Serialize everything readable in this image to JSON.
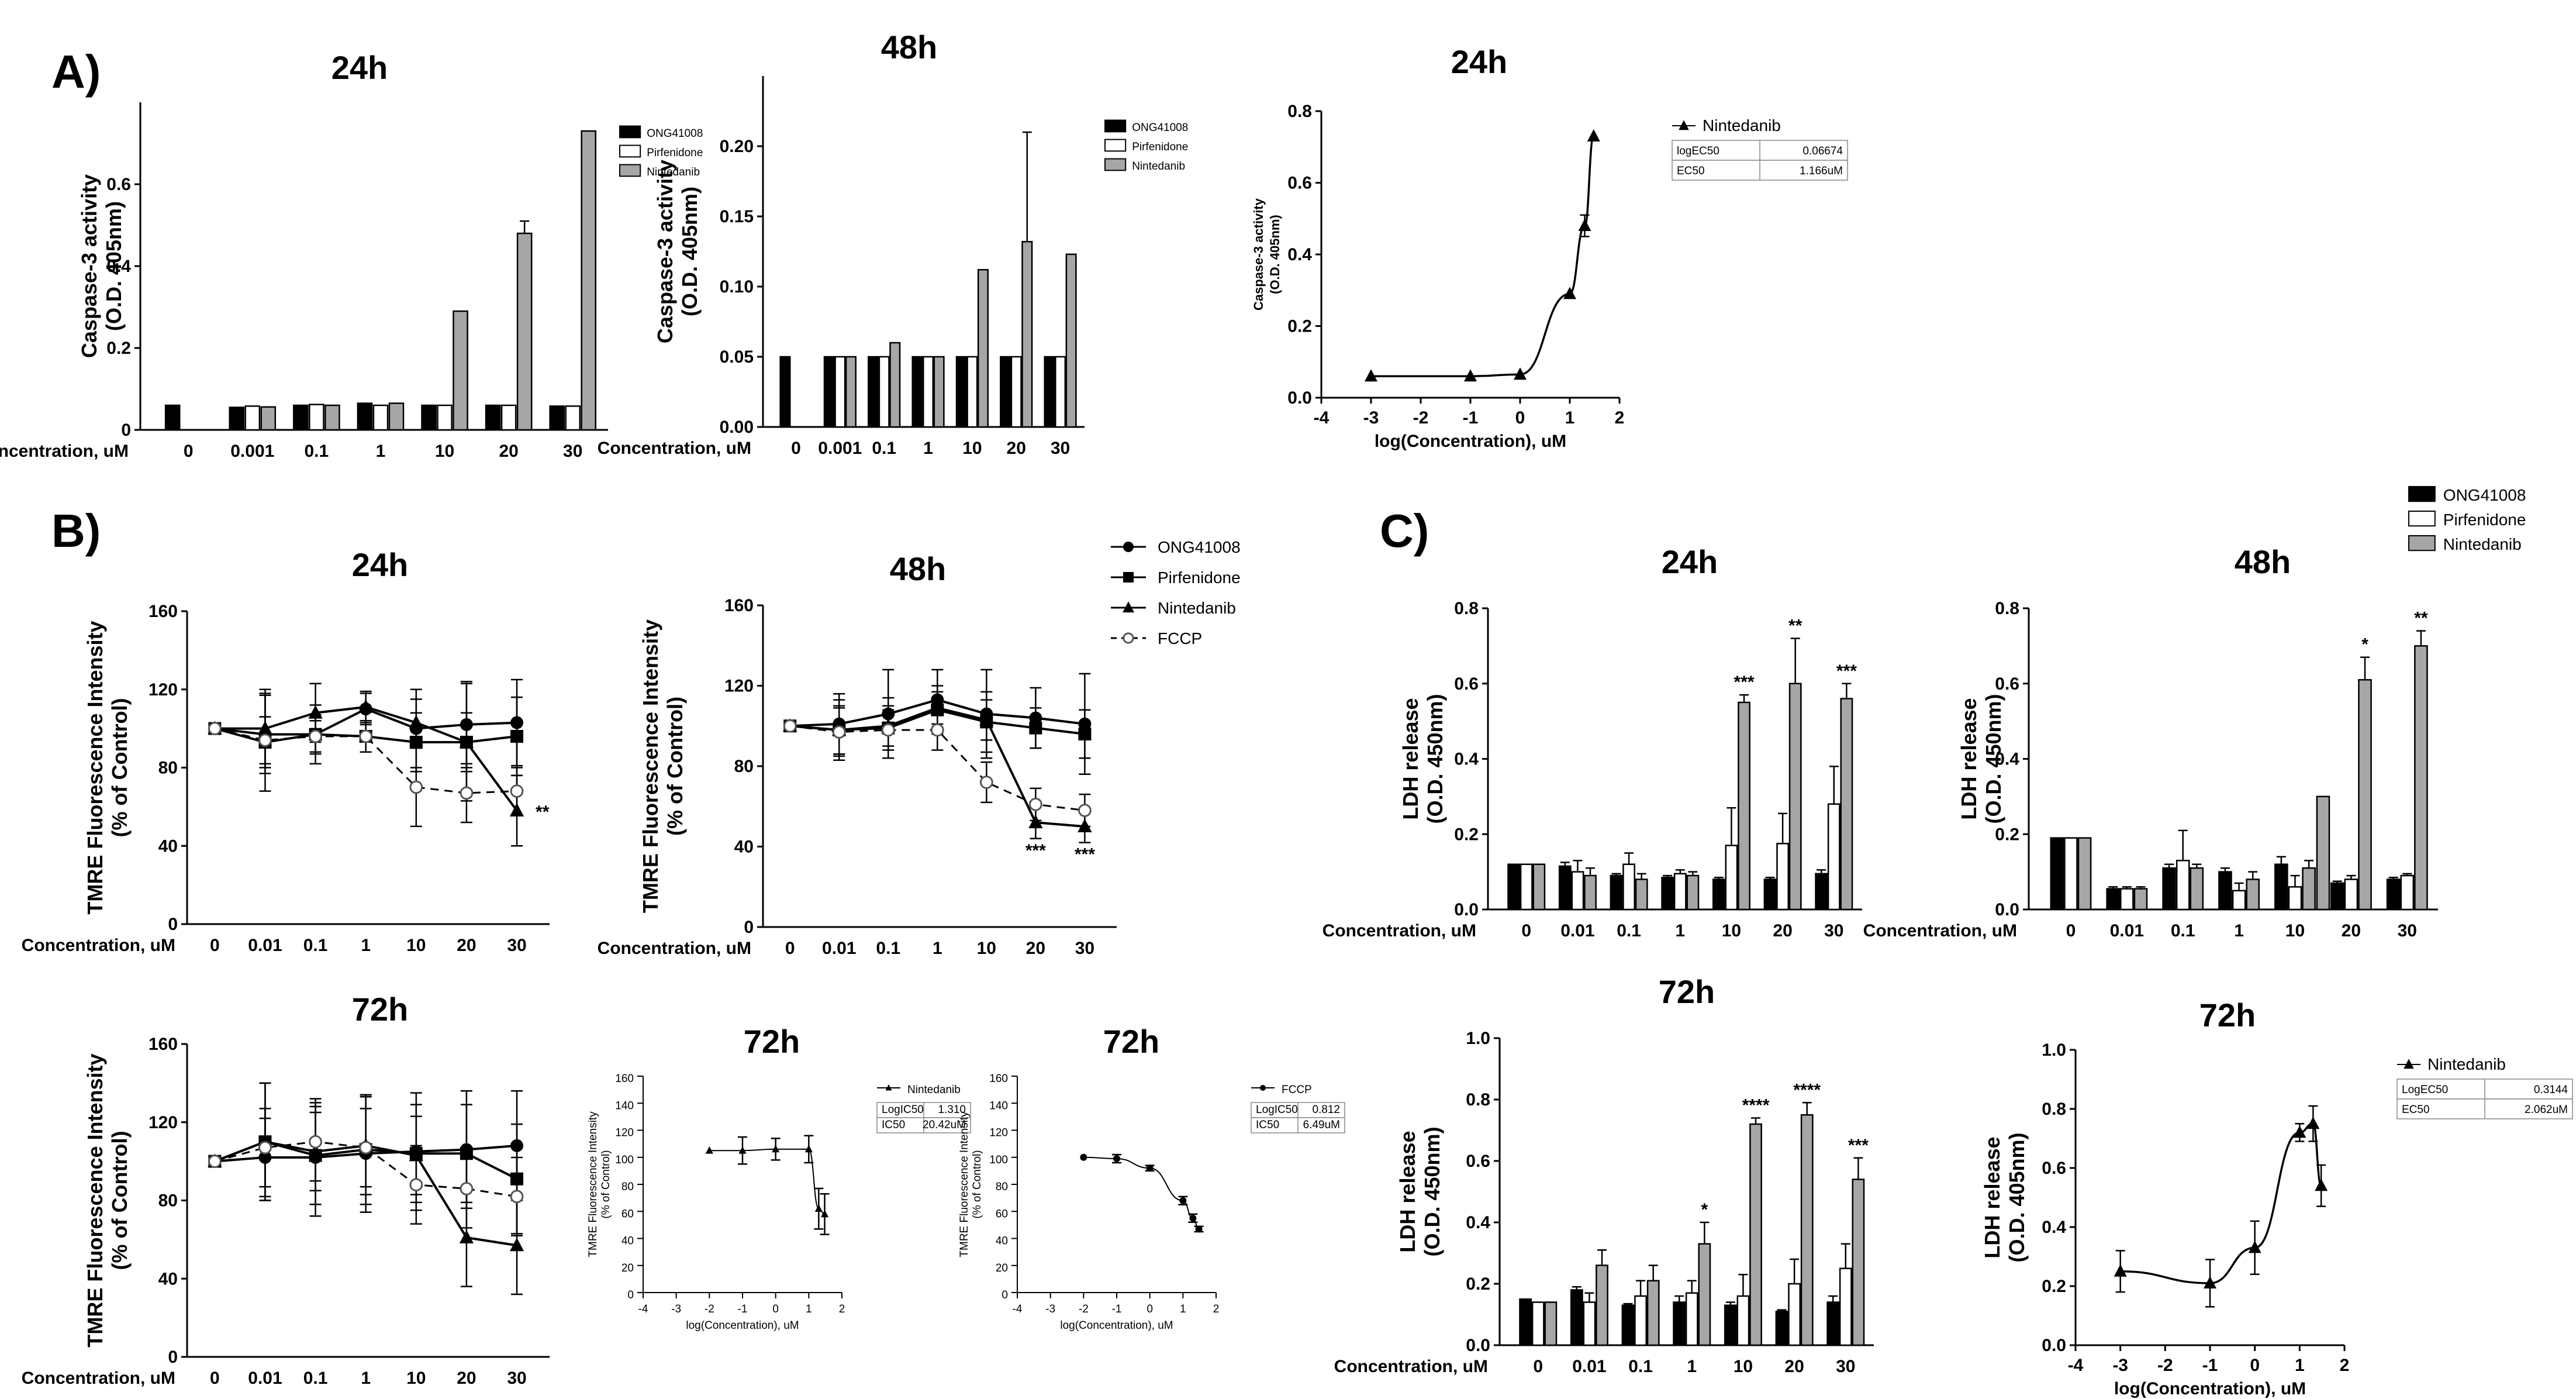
{
  "labels": {
    "panel_a": "A)",
    "panel_b": "B)",
    "panel_c": "C)"
  },
  "legend_main": [
    "ONG41008",
    "Pirfenidone",
    "Nintedanib"
  ],
  "legend_b": [
    "ONG41008",
    "Pirfenidone",
    "Nintedanib",
    "FCCP"
  ],
  "colors": {
    "ong": "#000000",
    "pirf": "#ffffff",
    "nint": "#a6a6a6"
  },
  "chart_data": [
    {
      "id": "a1",
      "type": "bar",
      "title": "24h",
      "ylabel": "Caspase-3 activity\n(O.D. 405nm)",
      "xlabel": "Concentration, uM",
      "categories": [
        "0",
        "0.001",
        "0.1",
        "1",
        "10",
        "20",
        "30"
      ],
      "yticks": [
        0,
        0.2,
        0.4,
        0.6
      ],
      "ylim": [
        0,
        0.8
      ],
      "series": [
        {
          "name": "ONG41008",
          "values": [
            0.06,
            0.055,
            0.06,
            0.065,
            0.06,
            0.06,
            0.058
          ]
        },
        {
          "name": "Pirfenidone",
          "values": [
            null,
            0.058,
            0.062,
            0.06,
            0.06,
            0.06,
            0.058
          ]
        },
        {
          "name": "Nintedanib",
          "values": [
            null,
            0.056,
            0.06,
            0.065,
            0.29,
            0.48,
            0.73
          ]
        }
      ],
      "errors": [
        [
          0,
          0,
          0,
          0,
          0,
          0,
          0
        ],
        [
          0,
          0,
          0,
          0,
          0,
          0,
          0
        ],
        [
          0,
          0,
          0,
          0,
          0,
          0.03,
          0
        ]
      ]
    },
    {
      "id": "a2",
      "type": "bar",
      "title": "48h",
      "ylabel": "Caspase-3 activity\n(O.D. 405nm)",
      "xlabel": "Concentration, uM",
      "categories": [
        "0",
        "0.001",
        "0.1",
        "1",
        "10",
        "20",
        "30"
      ],
      "yticks": [
        0,
        0.05,
        0.1,
        0.15,
        0.2
      ],
      "yticklabels": [
        "0.00",
        "0.05",
        "0.10",
        "0.15",
        "0.20"
      ],
      "ylim": [
        0,
        0.25
      ],
      "series": [
        {
          "name": "ONG41008",
          "values": [
            0.05,
            0.05,
            0.05,
            0.05,
            0.05,
            0.05,
            0.05
          ]
        },
        {
          "name": "Pirfenidone",
          "values": [
            null,
            0.05,
            0.05,
            0.05,
            0.05,
            0.05,
            0.05
          ]
        },
        {
          "name": "Nintedanib",
          "values": [
            null,
            0.05,
            0.06,
            0.05,
            0.112,
            0.132,
            0.123
          ]
        }
      ],
      "errors": [
        [
          0,
          0,
          0,
          0,
          0,
          0,
          0
        ],
        [
          0,
          0,
          0,
          0,
          0,
          0,
          0
        ],
        [
          0,
          0,
          0,
          0,
          0,
          0.078,
          0
        ]
      ]
    },
    {
      "id": "a3",
      "type": "line",
      "title": "24h",
      "ylabel": "Caspase-3 activity\n(O.D. 405nm)",
      "xlabel": "log(Concentration), uM",
      "xlim": [
        -4,
        2
      ],
      "ylim": [
        0,
        0.8
      ],
      "xticks": [
        -4,
        -3,
        -2,
        -1,
        0,
        1,
        2
      ],
      "yticks": [
        0,
        0.2,
        0.4,
        0.6,
        0.8
      ],
      "yticklabels": [
        "0.0",
        "0.2",
        "0.4",
        "0.6",
        "0.8"
      ],
      "series": [
        {
          "name": "Nintedanib",
          "x": [
            -3,
            -1,
            0,
            1,
            1.3,
            1.48
          ],
          "y": [
            0.06,
            0.06,
            0.065,
            0.29,
            0.48,
            0.73
          ],
          "err": [
            0,
            0,
            0,
            0,
            0.03,
            0
          ]
        }
      ],
      "table": [
        [
          "logEC50",
          "0.06674"
        ],
        [
          "EC50",
          "1.166uM"
        ]
      ]
    },
    {
      "id": "b1",
      "type": "line",
      "title": "24h",
      "ylabel": "TMRE Fluorescence Intensity\n(% of Control)",
      "xlabel": "Concentration, uM",
      "categories": [
        "0",
        "0.01",
        "0.1",
        "1",
        "10",
        "20",
        "30"
      ],
      "yticks": [
        0,
        40,
        80,
        120,
        160
      ],
      "ylim": [
        0,
        160
      ],
      "series": [
        {
          "name": "ONG41008",
          "values": [
            100,
            97,
            97,
            110,
            100,
            102,
            103
          ],
          "err": [
            0,
            20,
            15,
            8,
            20,
            22,
            22
          ]
        },
        {
          "name": "Pirfenidone",
          "values": [
            100,
            93,
            97,
            96,
            93,
            93,
            96
          ],
          "err": [
            0,
            25,
            10,
            8,
            15,
            15,
            20
          ]
        },
        {
          "name": "Nintedanib",
          "values": [
            100,
            100,
            108,
            111,
            103,
            93,
            58
          ],
          "err": [
            0,
            20,
            15,
            8,
            12,
            30,
            18
          ]
        },
        {
          "name": "FCCP",
          "values": [
            100,
            94,
            96,
            96,
            70,
            67,
            68
          ],
          "err": [
            0,
            12,
            8,
            8,
            20,
            15,
            12
          ]
        }
      ],
      "annotations": [
        {
          "cat": "30",
          "text": "**"
        }
      ]
    },
    {
      "id": "b2",
      "type": "line",
      "title": "48h",
      "ylabel": "TMRE Fluorescence Intensity\n(% of Control)",
      "xlabel": "Concentration, uM",
      "categories": [
        "0",
        "0.01",
        "0.1",
        "1",
        "10",
        "20",
        "30"
      ],
      "yticks": [
        0,
        40,
        80,
        120,
        160
      ],
      "ylim": [
        0,
        160
      ],
      "series": [
        {
          "name": "ONG41008",
          "values": [
            100,
            101,
            106,
            113,
            106,
            104,
            101
          ],
          "err": [
            0,
            15,
            22,
            15,
            22,
            15,
            25
          ]
        },
        {
          "name": "Pirfenidone",
          "values": [
            100,
            98,
            99,
            108,
            102,
            99,
            96
          ],
          "err": [
            0,
            12,
            15,
            12,
            15,
            10,
            12
          ]
        },
        {
          "name": "Nintedanib",
          "values": [
            100,
            98,
            100,
            109,
            103,
            52,
            50
          ],
          "err": [
            0,
            15,
            10,
            8,
            10,
            8,
            8
          ]
        },
        {
          "name": "FCCP",
          "values": [
            100,
            97,
            98,
            98,
            72,
            61,
            58
          ],
          "err": [
            0,
            12,
            10,
            10,
            10,
            8,
            8
          ]
        }
      ],
      "annotations": [
        {
          "cat": "20",
          "text": "***"
        },
        {
          "cat": "30",
          "text": "***"
        }
      ]
    },
    {
      "id": "b3",
      "type": "line",
      "title": "72h",
      "ylabel": "TMRE Fluorescence Intensity\n(% of Control)",
      "xlabel": "Concentration, uM",
      "categories": [
        "0",
        "0.01",
        "0.1",
        "1",
        "10",
        "20",
        "30"
      ],
      "yticks": [
        0,
        40,
        80,
        120,
        160
      ],
      "ylim": [
        0,
        160
      ],
      "series": [
        {
          "name": "ONG41008",
          "values": [
            100,
            102,
            102,
            104,
            105,
            106,
            108
          ],
          "err": [
            0,
            20,
            30,
            30,
            30,
            30,
            28
          ]
        },
        {
          "name": "Pirfenidone",
          "values": [
            100,
            110,
            103,
            106,
            104,
            104,
            91
          ],
          "err": [
            0,
            30,
            25,
            28,
            25,
            25,
            28
          ]
        },
        {
          "name": "Nintedanib",
          "values": [
            100,
            110,
            105,
            108,
            103,
            61,
            57
          ],
          "err": [
            0,
            30,
            20,
            25,
            20,
            25,
            25
          ]
        },
        {
          "name": "FCCP",
          "values": [
            100,
            107,
            110,
            107,
            88,
            86,
            82
          ],
          "err": [
            0,
            20,
            20,
            20,
            20,
            20,
            20
          ]
        }
      ]
    },
    {
      "id": "b4",
      "type": "line",
      "title": "72h",
      "ylabel": "TMRE Fluorescence Intensity\n(% of Control)",
      "xlabel": "log(Concentration), uM",
      "xlim": [
        -4,
        2
      ],
      "ylim": [
        0,
        160
      ],
      "xticks": [
        -4,
        -3,
        -2,
        -1,
        0,
        1,
        2
      ],
      "yticks": [
        0,
        20,
        40,
        60,
        80,
        100,
        120,
        140,
        160
      ],
      "series": [
        {
          "name": "Nintedanib",
          "x": [
            -2,
            -1,
            0,
            1,
            1.3,
            1.48
          ],
          "y": [
            105,
            105,
            106,
            106,
            62,
            58
          ],
          "err": [
            0,
            10,
            8,
            10,
            15,
            15
          ]
        }
      ],
      "table": [
        [
          "LogIC50",
          "1.310"
        ],
        [
          "IC50",
          "20.42uM"
        ]
      ]
    },
    {
      "id": "b5",
      "type": "line",
      "title": "72h",
      "ylabel": "TMRE Fluorescence Intensity\n(% of Control)",
      "xlabel": "log(Concentration), uM",
      "xlim": [
        -4,
        2
      ],
      "ylim": [
        0,
        160
      ],
      "xticks": [
        -4,
        -3,
        -2,
        -1,
        0,
        1,
        2
      ],
      "yticks": [
        0,
        20,
        40,
        60,
        80,
        100,
        120,
        140,
        160
      ],
      "series": [
        {
          "name": "FCCP",
          "x": [
            -2,
            -1,
            0,
            1,
            1.3,
            1.48
          ],
          "y": [
            100,
            99,
            92,
            68,
            55,
            47
          ],
          "err": [
            0,
            3,
            2,
            3,
            3,
            2
          ]
        }
      ],
      "table": [
        [
          "LogIC50",
          "0.812"
        ],
        [
          "IC50",
          "6.49uM"
        ]
      ]
    },
    {
      "id": "c1",
      "type": "bar",
      "title": "24h",
      "ylabel": "LDH release\n(O.D. 450nm)",
      "xlabel": "Concentration, uM",
      "categories": [
        "0",
        "0.01",
        "0.1",
        "1",
        "10",
        "20",
        "30"
      ],
      "yticks": [
        0,
        0.2,
        0.4,
        0.6,
        0.8
      ],
      "yticklabels": [
        "0.0",
        "0.2",
        "0.4",
        "0.6",
        "0.8"
      ],
      "ylim": [
        0,
        0.8
      ],
      "series": [
        {
          "name": "ONG41008",
          "values": [
            0.12,
            0.115,
            0.09,
            0.085,
            0.08,
            0.08,
            0.095
          ]
        },
        {
          "name": "Pirfenidone",
          "values": [
            0.12,
            0.1,
            0.12,
            0.095,
            0.17,
            0.175,
            0.28
          ]
        },
        {
          "name": "Nintedanib",
          "values": [
            0.12,
            0.09,
            0.08,
            0.09,
            0.55,
            0.6,
            0.56
          ]
        }
      ],
      "errors": [
        [
          0,
          0.01,
          0.005,
          0.005,
          0.005,
          0.005,
          0.01
        ],
        [
          0,
          0.03,
          0.03,
          0.01,
          0.1,
          0.08,
          0.1
        ],
        [
          0,
          0.02,
          0.015,
          0.01,
          0.02,
          0.12,
          0.04
        ]
      ],
      "annotations": [
        {
          "cat": "10",
          "text": "***"
        },
        {
          "cat": "20",
          "text": "**"
        },
        {
          "cat": "30",
          "text": "***"
        }
      ]
    },
    {
      "id": "c2",
      "type": "bar",
      "title": "48h",
      "ylabel": "LDH release\n(O.D. 450nm)",
      "xlabel": "Concentration, uM",
      "categories": [
        "0",
        "0.01",
        "0.1",
        "1",
        "10",
        "20",
        "30"
      ],
      "yticks": [
        0,
        0.2,
        0.4,
        0.6,
        0.8
      ],
      "yticklabels": [
        "0.0",
        "0.2",
        "0.4",
        "0.6",
        "0.8"
      ],
      "ylim": [
        0,
        0.8
      ],
      "series": [
        {
          "name": "ONG41008",
          "values": [
            0.19,
            0.055,
            0.11,
            0.1,
            0.12,
            0.07,
            0.08
          ]
        },
        {
          "name": "Pirfenidone",
          "values": [
            0.19,
            0.055,
            0.13,
            0.05,
            0.06,
            0.08,
            0.09
          ]
        },
        {
          "name": "Nintedanib",
          "values": [
            0.19,
            0.055,
            0.11,
            0.08,
            0.11,
            0.61,
            0.7
          ]
        }
      ],
      "errors": [
        [
          0,
          0.005,
          0.01,
          0.01,
          0.02,
          0.005,
          0.005
        ],
        [
          0,
          0.005,
          0.08,
          0.02,
          0.03,
          0.01,
          0.005
        ],
        [
          0,
          0.005,
          0.01,
          0.02,
          0.02,
          0.06,
          0.04
        ]
      ],
      "extra": [
        {
          "name": "Nintedanib",
          "value": 0.3,
          "between": [
            "10",
            "20"
          ]
        }
      ],
      "annotations": [
        {
          "cat": "20",
          "text": "*"
        },
        {
          "cat": "30",
          "text": "**"
        }
      ]
    },
    {
      "id": "c3",
      "type": "bar",
      "title": "72h",
      "ylabel": "LDH release\n(O.D. 450nm)",
      "xlabel": "Concentration, uM",
      "categories": [
        "0",
        "0.01",
        "0.1",
        "1",
        "10",
        "20",
        "30"
      ],
      "yticks": [
        0,
        0.2,
        0.4,
        0.6,
        0.8,
        1.0
      ],
      "yticklabels": [
        "0.0",
        "0.2",
        "0.4",
        "0.6",
        "0.8",
        "1.0"
      ],
      "ylim": [
        0,
        1.0
      ],
      "series": [
        {
          "name": "ONG41008",
          "values": [
            0.15,
            0.18,
            0.13,
            0.14,
            0.13,
            0.11,
            0.14
          ]
        },
        {
          "name": "Pirfenidone",
          "values": [
            0.14,
            0.14,
            0.16,
            0.17,
            0.16,
            0.2,
            0.25
          ]
        },
        {
          "name": "Nintedanib",
          "values": [
            0.14,
            0.26,
            0.21,
            0.33,
            0.72,
            0.75,
            0.54
          ]
        }
      ],
      "errors": [
        [
          0,
          0.01,
          0.005,
          0.02,
          0.01,
          0.005,
          0.02
        ],
        [
          0,
          0.03,
          0.05,
          0.04,
          0.07,
          0.08,
          0.08
        ],
        [
          0,
          0.05,
          0.05,
          0.07,
          0.02,
          0.04,
          0.07
        ]
      ],
      "annotations": [
        {
          "cat": "1",
          "text": "*"
        },
        {
          "cat": "10",
          "text": "****"
        },
        {
          "cat": "20",
          "text": "****"
        },
        {
          "cat": "30",
          "text": "***"
        }
      ]
    },
    {
      "id": "c4",
      "type": "line",
      "title": "72h",
      "ylabel": "LDH release\n(O.D. 405nm)",
      "xlabel": "log(Concentration), uM",
      "xlim": [
        -4,
        2
      ],
      "ylim": [
        0,
        1.0
      ],
      "xticks": [
        -4,
        -3,
        -2,
        -1,
        0,
        1,
        2
      ],
      "yticks": [
        0,
        0.2,
        0.4,
        0.6,
        0.8,
        1.0
      ],
      "yticklabels": [
        "0.0",
        "0.2",
        "0.4",
        "0.6",
        "0.8",
        "1.0"
      ],
      "series": [
        {
          "name": "Nintedanib",
          "x": [
            -3,
            -1,
            0,
            1,
            1.3,
            1.48
          ],
          "y": [
            0.25,
            0.21,
            0.33,
            0.72,
            0.75,
            0.54
          ],
          "err": [
            0.07,
            0.08,
            0.09,
            0.03,
            0.06,
            0.07
          ]
        }
      ],
      "table": [
        [
          "LogEC50",
          "0.3144"
        ],
        [
          "EC50",
          "2.062uM"
        ]
      ]
    }
  ]
}
